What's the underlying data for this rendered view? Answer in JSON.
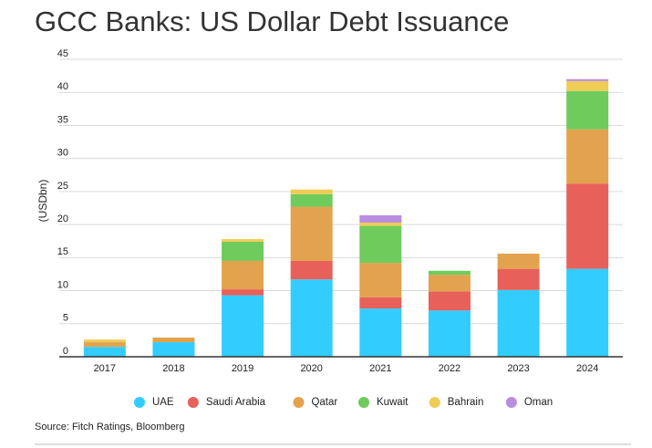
{
  "chart_data": {
    "type": "stacked-bar",
    "title": "GCC Banks: US Dollar Debt Issuance",
    "y_label": "(USDbn)",
    "source": "Source: Fitch Ratings, Bloomberg",
    "categories": [
      "2017",
      "2018",
      "2019",
      "2020",
      "2021",
      "2022",
      "2023",
      "2024"
    ],
    "series": [
      {
        "name": "UAE",
        "color": "#33ccff",
        "values": [
          1.5,
          2.2,
          9.3,
          11.7,
          7.3,
          7.0,
          10.1,
          13.3
        ]
      },
      {
        "name": "Saudi Arabia",
        "color": "#e8605a",
        "values": [
          null,
          null,
          0.9,
          2.8,
          1.7,
          2.9,
          3.2,
          12.9
        ]
      },
      {
        "name": "Qatar",
        "color": "#e3a24e",
        "values": [
          0.7,
          0.7,
          4.3,
          8.2,
          5.2,
          2.5,
          2.3,
          8.2
        ]
      },
      {
        "name": "Kuwait",
        "color": "#6fcb5c",
        "values": [
          null,
          null,
          2.9,
          1.9,
          5.6,
          0.6,
          null,
          5.8
        ]
      },
      {
        "name": "Bahrain",
        "color": "#efcc55",
        "values": [
          0.4,
          null,
          0.4,
          0.7,
          0.5,
          null,
          null,
          1.5
        ]
      },
      {
        "name": "Oman",
        "color": "#b98de0",
        "values": [
          null,
          null,
          null,
          null,
          1.1,
          null,
          null,
          0.3
        ]
      }
    ],
    "ylim": [
      0,
      45
    ],
    "yticks": [
      0,
      5,
      10,
      15,
      20,
      25,
      30,
      35,
      40,
      45
    ],
    "grid": true,
    "legend": "bottom"
  }
}
